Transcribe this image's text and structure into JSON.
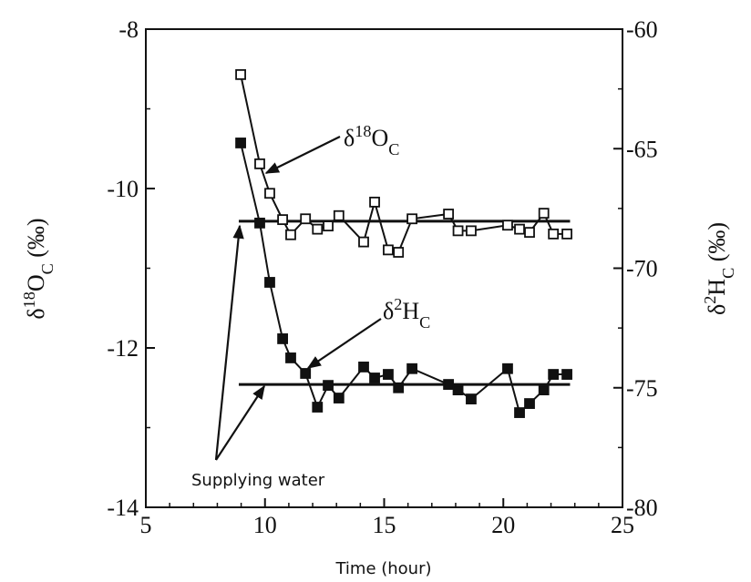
{
  "chart_data": {
    "type": "line",
    "xlabel": "Time (hour)",
    "ylabel": {
      "parts": [
        {
          "text": "δ"
        },
        {
          "text": "18",
          "shift": "super"
        },
        {
          "text": "O"
        },
        {
          "text": "C",
          "shift": "sub"
        },
        {
          "text": " (‰)"
        }
      ]
    },
    "y2label": {
      "parts": [
        {
          "text": "δ"
        },
        {
          "text": "2",
          "shift": "super"
        },
        {
          "text": "H"
        },
        {
          "text": "C",
          "shift": "sub"
        },
        {
          "text": " (‰)"
        }
      ]
    },
    "xlim": [
      5,
      25
    ],
    "xticks": [
      5,
      10,
      15,
      20,
      25
    ],
    "xminorticks": [
      6,
      7,
      8,
      9,
      11,
      12,
      13,
      14,
      16,
      17,
      18,
      19,
      21,
      22,
      23,
      24
    ],
    "ylim": [
      -14,
      -8
    ],
    "yticks": [
      -14,
      -12,
      -10,
      -8
    ],
    "yminorticks": [
      -13,
      -11,
      -9
    ],
    "y2lim": [
      -80,
      -60
    ],
    "y2ticks": [
      -80,
      -75,
      -70,
      -65,
      -60
    ],
    "y2minorticks": [
      -77.5,
      -72.5,
      -67.5,
      -62.5
    ],
    "x": [
      8.98,
      9.78,
      10.2,
      10.74,
      11.08,
      11.7,
      12.2,
      12.65,
      13.1,
      14.14,
      14.6,
      15.17,
      15.6,
      16.17,
      17.7,
      18.1,
      18.65,
      20.18,
      20.68,
      21.1,
      21.7,
      22.1,
      22.67
    ],
    "series": [
      {
        "color": "#111111",
        "marker": "open-square",
        "values": [
          -8.57,
          -9.69,
          -10.06,
          -10.39,
          -10.58,
          -10.38,
          -10.51,
          -10.47,
          -10.34,
          -10.67,
          -10.17,
          -10.77,
          -10.8,
          -10.38,
          -10.32,
          -10.53,
          -10.53,
          -10.46,
          -10.51,
          -10.55,
          -10.31,
          -10.57,
          -10.57
        ]
      },
      {
        "color": "#111111",
        "marker": "filled-square",
        "axis": "y2",
        "values": [
          -64.76,
          -68.11,
          -70.59,
          -72.95,
          -73.75,
          -74.4,
          -75.81,
          -74.9,
          -75.43,
          -74.13,
          -74.59,
          -74.44,
          -75.0,
          -74.2,
          -74.86,
          -75.09,
          -75.47,
          -74.2,
          -76.04,
          -75.66,
          -75.09,
          -74.44,
          -74.44
        ]
      }
    ],
    "reference_lines": [
      {
        "axis": "y",
        "value": -10.41,
        "x": [
          8.9,
          22.8
        ]
      },
      {
        "axis": "y2",
        "value": -74.86,
        "x": [
          8.9,
          22.8
        ]
      }
    ],
    "annotations": [
      {
        "parts": [
          {
            "text": "δ"
          },
          {
            "text": "18",
            "shift": "super"
          },
          {
            "text": "O"
          },
          {
            "text": "C",
            "shift": "sub"
          }
        ]
      },
      {
        "parts": [
          {
            "text": "δ"
          },
          {
            "text": "2",
            "shift": "super"
          },
          {
            "text": "H"
          },
          {
            "text": "C",
            "shift": "sub"
          }
        ]
      },
      {
        "text": "Supplying water"
      }
    ]
  }
}
